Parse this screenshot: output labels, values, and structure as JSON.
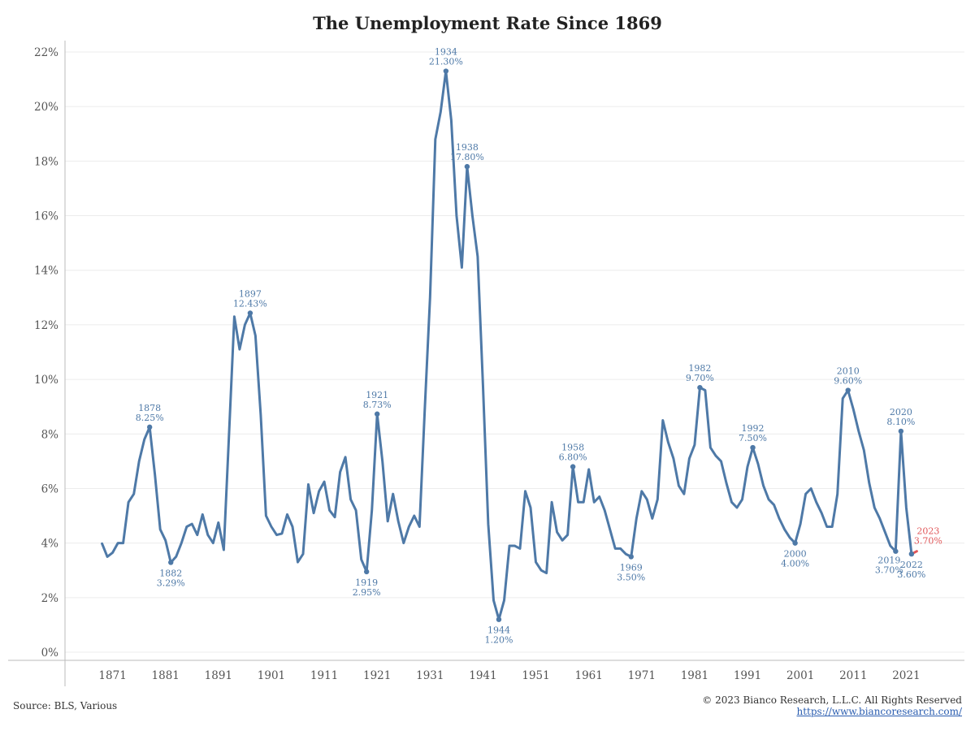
{
  "footer": {
    "source": "Source: BLS, Various",
    "copyright": "© 2023 Bianco Research, L.L.C. All Rights Reserved",
    "url": "https://www.biancoresearch.com/"
  },
  "colors": {
    "line": "#4e79a7",
    "highlight": "#e15759",
    "grid": "#ececec",
    "axis": "#bbbbbb",
    "text": "#555555"
  },
  "chart_data": {
    "type": "line",
    "title": "The Unemployment Rate Since 1869",
    "xlabel": "",
    "ylabel": "",
    "xlim": [
      1862,
      2032
    ],
    "ylim": [
      0,
      22
    ],
    "x_ticks": [
      1871,
      1881,
      1891,
      1901,
      1911,
      1921,
      1931,
      1941,
      1951,
      1961,
      1971,
      1981,
      1991,
      2001,
      2011,
      2021
    ],
    "y_ticks": [
      "0%",
      "2%",
      "4%",
      "6%",
      "8%",
      "10%",
      "12%",
      "14%",
      "16%",
      "18%",
      "20%",
      "22%"
    ],
    "y_tick_values": [
      0,
      2,
      4,
      6,
      8,
      10,
      12,
      14,
      16,
      18,
      20,
      22
    ],
    "grid": true,
    "series": [
      {
        "x": [
          1869,
          1870,
          1871,
          1872,
          1873,
          1874,
          1875,
          1876,
          1877,
          1878,
          1879,
          1880,
          1881,
          1882,
          1883,
          1884,
          1885,
          1886,
          1887,
          1888,
          1889,
          1890,
          1891,
          1892,
          1893,
          1894,
          1895,
          1896,
          1897,
          1898,
          1899,
          1900,
          1901,
          1902,
          1903,
          1904,
          1905,
          1906,
          1907,
          1908,
          1909,
          1910,
          1911,
          1912,
          1913,
          1914,
          1915,
          1916,
          1917,
          1918,
          1919,
          1920,
          1921,
          1922,
          1923,
          1924,
          1925,
          1926,
          1927,
          1928,
          1929,
          1930,
          1931,
          1932,
          1933,
          1934,
          1935,
          1936,
          1937,
          1938,
          1939,
          1940,
          1941,
          1942,
          1943,
          1944,
          1945,
          1946,
          1947,
          1948,
          1949,
          1950,
          1951,
          1952,
          1953,
          1954,
          1955,
          1956,
          1957,
          1958,
          1959,
          1960,
          1961,
          1962,
          1963,
          1964,
          1965,
          1966,
          1967,
          1968,
          1969,
          1970,
          1971,
          1972,
          1973,
          1974,
          1975,
          1976,
          1977,
          1978,
          1979,
          1980,
          1981,
          1982,
          1983,
          1984,
          1985,
          1986,
          1987,
          1988,
          1989,
          1990,
          1991,
          1992,
          1993,
          1994,
          1995,
          1996,
          1997,
          1998,
          1999,
          2000,
          2001,
          2002,
          2003,
          2004,
          2005,
          2006,
          2007,
          2008,
          2009,
          2010,
          2011,
          2012,
          2013,
          2014,
          2015,
          2016,
          2017,
          2018,
          2019,
          2020,
          2021,
          2022
        ],
        "values": [
          3.98,
          3.5,
          3.65,
          4.0,
          4.0,
          5.5,
          5.8,
          7.0,
          7.8,
          8.25,
          6.5,
          4.5,
          4.1,
          3.29,
          3.5,
          4.0,
          4.6,
          4.7,
          4.3,
          5.05,
          4.3,
          4.0,
          4.75,
          3.75,
          8.0,
          12.3,
          11.1,
          12.0,
          12.43,
          11.6,
          8.7,
          5.0,
          4.6,
          4.3,
          4.35,
          5.05,
          4.6,
          3.3,
          3.6,
          6.15,
          5.1,
          5.9,
          6.25,
          5.2,
          4.95,
          6.6,
          7.15,
          5.6,
          5.2,
          3.4,
          2.95,
          5.2,
          8.73,
          7.0,
          4.8,
          5.8,
          4.8,
          4.0,
          4.6,
          5.0,
          4.6,
          8.9,
          13.0,
          18.8,
          19.8,
          21.3,
          19.5,
          16.0,
          14.1,
          17.8,
          16.0,
          14.5,
          9.8,
          4.7,
          1.9,
          1.2,
          1.9,
          3.9,
          3.9,
          3.8,
          5.9,
          5.3,
          3.3,
          3.0,
          2.9,
          5.5,
          4.4,
          4.1,
          4.3,
          6.8,
          5.5,
          5.5,
          6.7,
          5.5,
          5.7,
          5.2,
          4.5,
          3.8,
          3.8,
          3.6,
          3.5,
          4.9,
          5.9,
          5.6,
          4.9,
          5.6,
          8.5,
          7.7,
          7.1,
          6.1,
          5.8,
          7.1,
          7.6,
          9.7,
          9.6,
          7.5,
          7.2,
          7.0,
          6.2,
          5.5,
          5.3,
          5.6,
          6.8,
          7.5,
          6.9,
          6.1,
          5.6,
          5.4,
          4.9,
          4.5,
          4.2,
          4.0,
          4.7,
          5.8,
          6.0,
          5.5,
          5.1,
          4.6,
          4.6,
          5.8,
          9.3,
          9.6,
          8.9,
          8.1,
          7.4,
          6.2,
          5.3,
          4.9,
          4.4,
          3.9,
          3.7,
          8.1,
          5.3,
          3.6
        ]
      }
    ],
    "highlight_segment": {
      "x": [
        2022,
        2023
      ],
      "values": [
        3.6,
        3.7
      ]
    },
    "annotations": [
      {
        "year": "1878",
        "value": "8.25%",
        "x": 1878,
        "y": 8.25,
        "pos": "above",
        "dot": true
      },
      {
        "year": "1882",
        "value": "3.29%",
        "x": 1882,
        "y": 3.29,
        "pos": "below",
        "dot": true
      },
      {
        "year": "1897",
        "value": "12.43%",
        "x": 1897,
        "y": 12.43,
        "pos": "above",
        "dot": true
      },
      {
        "year": "1919",
        "value": "2.95%",
        "x": 1919,
        "y": 2.95,
        "pos": "below",
        "dot": true
      },
      {
        "year": "1921",
        "value": "8.73%",
        "x": 1921,
        "y": 8.73,
        "pos": "above",
        "dot": true
      },
      {
        "year": "1934",
        "value": "21.30%",
        "x": 1934,
        "y": 21.3,
        "pos": "above",
        "dot": true
      },
      {
        "year": "1938",
        "value": "17.80%",
        "x": 1938,
        "y": 17.8,
        "pos": "above",
        "dot": true
      },
      {
        "year": "1944",
        "value": "1.20%",
        "x": 1944,
        "y": 1.2,
        "pos": "below",
        "dot": true
      },
      {
        "year": "1958",
        "value": "6.80%",
        "x": 1958,
        "y": 6.8,
        "pos": "above",
        "dot": true
      },
      {
        "year": "1969",
        "value": "3.50%",
        "x": 1969,
        "y": 3.5,
        "pos": "below",
        "dot": true
      },
      {
        "year": "1982",
        "value": "9.70%",
        "x": 1982,
        "y": 9.7,
        "pos": "above",
        "dot": true
      },
      {
        "year": "1992",
        "value": "7.50%",
        "x": 1992,
        "y": 7.5,
        "pos": "above",
        "dot": true
      },
      {
        "year": "2000",
        "value": "4.00%",
        "x": 2000,
        "y": 4.0,
        "pos": "below",
        "dot": true
      },
      {
        "year": "2010",
        "value": "9.60%",
        "x": 2010,
        "y": 9.6,
        "pos": "above",
        "dot": true
      },
      {
        "year": "2019",
        "value": "3.70%",
        "x": 2019,
        "y": 3.7,
        "pos": "below-left",
        "dot": true
      },
      {
        "year": "2020",
        "value": "8.10%",
        "x": 2020,
        "y": 8.1,
        "pos": "above",
        "dot": true
      },
      {
        "year": "2022",
        "value": "3.60%",
        "x": 2022,
        "y": 3.6,
        "pos": "below",
        "dot": true
      },
      {
        "year": "2023",
        "value": "3.70%",
        "x": 2023,
        "y": 3.7,
        "pos": "above-right",
        "dot": false,
        "highlight": true
      }
    ]
  }
}
